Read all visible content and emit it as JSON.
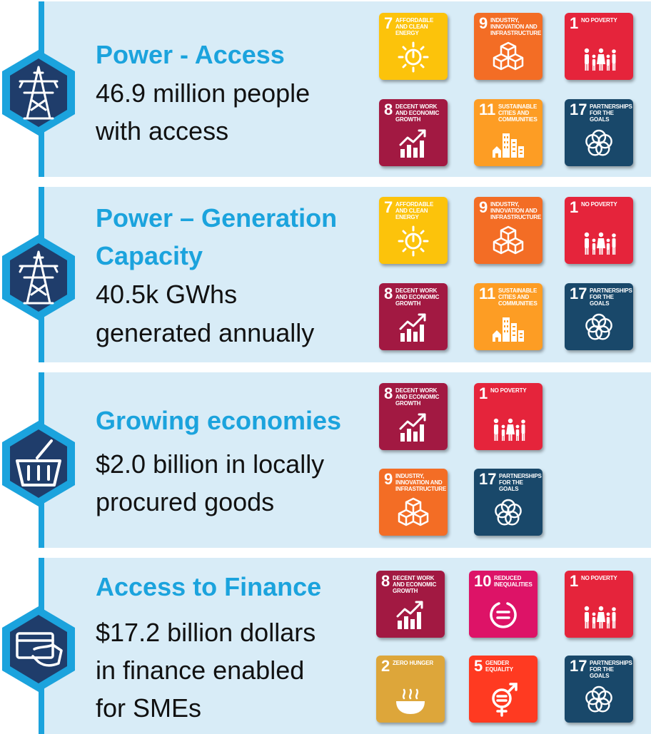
{
  "sections": [
    {
      "icon": "power-tower-icon",
      "title_lines": [
        "Power - Access"
      ],
      "desc_lines": [
        "46.9 million people",
        "with access"
      ],
      "sdgs": [
        {
          "num": "7",
          "title": "Affordable and clean energy",
          "color": "#fcc30b",
          "icon": "sun-power-icon"
        },
        {
          "num": "9",
          "title": "Industry, innovation and infrastructure",
          "color": "#f36d25",
          "icon": "cubes-icon"
        },
        {
          "num": "1",
          "title": "No poverty",
          "color": "#e5243b",
          "icon": "family-icon"
        },
        {
          "num": "8",
          "title": "Decent work and economic growth",
          "color": "#a21942",
          "icon": "growth-chart-icon"
        },
        {
          "num": "11",
          "title": "Sustainable cities and communities",
          "color": "#fd9d24",
          "icon": "city-icon"
        },
        {
          "num": "17",
          "title": "Partnerships for the goals",
          "color": "#19486a",
          "icon": "flower-rings-icon"
        }
      ]
    },
    {
      "icon": "power-tower-icon",
      "title_lines": [
        "Power – Generation",
        "Capacity"
      ],
      "desc_lines": [
        "40.5k GWhs",
        "generated annually"
      ],
      "sdgs": [
        {
          "num": "7",
          "title": "Affordable and clean energy",
          "color": "#fcc30b",
          "icon": "sun-power-icon"
        },
        {
          "num": "9",
          "title": "Industry, innovation and infrastructure",
          "color": "#f36d25",
          "icon": "cubes-icon"
        },
        {
          "num": "1",
          "title": "No poverty",
          "color": "#e5243b",
          "icon": "family-icon"
        },
        {
          "num": "8",
          "title": "Decent work and economic growth",
          "color": "#a21942",
          "icon": "growth-chart-icon"
        },
        {
          "num": "11",
          "title": "Sustainable cities and communities",
          "color": "#fd9d24",
          "icon": "city-icon"
        },
        {
          "num": "17",
          "title": "Partnerships for the goals",
          "color": "#19486a",
          "icon": "flower-rings-icon"
        }
      ]
    },
    {
      "icon": "shopping-basket-icon",
      "title_lines": [
        "Growing economies"
      ],
      "desc_lines": [
        "$2.0 billion in locally",
        "procured goods"
      ],
      "sdgs": [
        {
          "num": "8",
          "title": "Decent work and economic growth",
          "color": "#a21942",
          "icon": "growth-chart-icon"
        },
        {
          "num": "1",
          "title": "No poverty",
          "color": "#e5243b",
          "icon": "family-icon"
        },
        {
          "num": "9",
          "title": "Industry, innovation and infrastructure",
          "color": "#f36d25",
          "icon": "cubes-icon"
        },
        {
          "num": "17",
          "title": "Partnerships for the goals",
          "color": "#19486a",
          "icon": "flower-rings-icon"
        }
      ]
    },
    {
      "icon": "card-payment-icon",
      "title_lines": [
        "Access to Finance"
      ],
      "desc_lines": [
        "$17.2 billion dollars",
        "in finance enabled",
        "for SMEs"
      ],
      "sdgs": [
        {
          "num": "8",
          "title": "Decent work and economic growth",
          "color": "#a21942",
          "icon": "growth-chart-icon"
        },
        {
          "num": "10",
          "title": "Reduced inequalities",
          "color": "#dd1367",
          "icon": "equal-circle-icon"
        },
        {
          "num": "1",
          "title": "No poverty",
          "color": "#e5243b",
          "icon": "family-icon"
        },
        {
          "num": "2",
          "title": "Zero hunger",
          "color": "#dda63a",
          "icon": "food-bowl-icon"
        },
        {
          "num": "5",
          "title": "Gender equality",
          "color": "#ff3a21",
          "icon": "gender-symbol-icon"
        },
        {
          "num": "17",
          "title": "Partnerships for the goals",
          "color": "#19486a",
          "icon": "flower-rings-icon"
        }
      ]
    }
  ]
}
